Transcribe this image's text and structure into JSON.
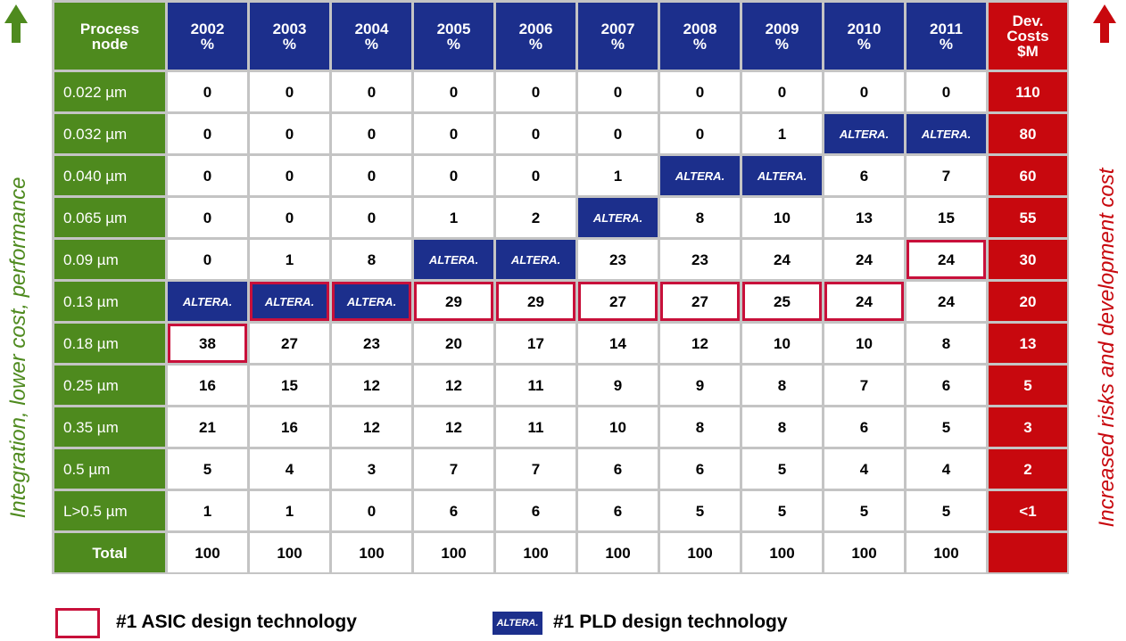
{
  "side_labels": {
    "left": "Integration, lower cost, performance",
    "right": "Increased risks and development cost"
  },
  "logo": "ALTERA.",
  "table": {
    "header": [
      "Process\nnode",
      "2002\n%",
      "2003\n%",
      "2004\n%",
      "2005\n%",
      "2006\n%",
      "2007\n%",
      "2008\n%",
      "2009\n%",
      "2010\n%",
      "2011\n%",
      "Dev.\nCosts\n$M"
    ],
    "rows": [
      {
        "node": "0.022 µm",
        "values": [
          0,
          0,
          0,
          0,
          0,
          0,
          0,
          0,
          0,
          0
        ],
        "cost": 110
      },
      {
        "node": "0.032 µm",
        "values": [
          0,
          0,
          0,
          0,
          0,
          0,
          0,
          1,
          "ALTERA.",
          "ALTERA."
        ],
        "cost": 80
      },
      {
        "node": "0.040 µm",
        "values": [
          0,
          0,
          0,
          0,
          0,
          1,
          "ALTERA.",
          "ALTERA.",
          6,
          7
        ],
        "cost": 60
      },
      {
        "node": "0.065 µm",
        "values": [
          0,
          0,
          0,
          1,
          2,
          "ALTERA.",
          8,
          10,
          13,
          15
        ],
        "cost": 55
      },
      {
        "node": "0.09 µm",
        "values": [
          0,
          1,
          8,
          "ALTERA.",
          "ALTERA.",
          23,
          23,
          24,
          24,
          24
        ],
        "cost": 30,
        "asic": [
          9
        ]
      },
      {
        "node": "0.13 µm",
        "values": [
          "ALTERA.",
          "ALTERA.",
          "ALTERA.",
          29,
          29,
          27,
          27,
          25,
          24,
          24
        ],
        "cost": 20,
        "asic": [
          1,
          2,
          3,
          4,
          5,
          6,
          7,
          8
        ]
      },
      {
        "node": "0.18 µm",
        "values": [
          38,
          27,
          23,
          20,
          17,
          14,
          12,
          10,
          10,
          8
        ],
        "cost": 13,
        "asic": [
          0
        ]
      },
      {
        "node": "0.25 µm",
        "values": [
          16,
          15,
          12,
          12,
          11,
          9,
          9,
          8,
          7,
          6
        ],
        "cost": 5
      },
      {
        "node": "0.35 µm",
        "values": [
          21,
          16,
          12,
          12,
          11,
          10,
          8,
          8,
          6,
          5
        ],
        "cost": 3
      },
      {
        "node": "0.5 µm",
        "values": [
          5,
          4,
          3,
          7,
          7,
          6,
          6,
          5,
          4,
          4
        ],
        "cost": 2
      },
      {
        "node": "L>0.5 µm",
        "values": [
          1,
          1,
          0,
          6,
          6,
          6,
          5,
          5,
          5,
          5
        ],
        "cost": "<1"
      },
      {
        "node": "Total",
        "values": [
          100,
          100,
          100,
          100,
          100,
          100,
          100,
          100,
          100,
          100
        ]
      }
    ]
  },
  "legend": {
    "asic": "#1 ASIC design technology",
    "pld": "#1 PLD design technology"
  }
}
